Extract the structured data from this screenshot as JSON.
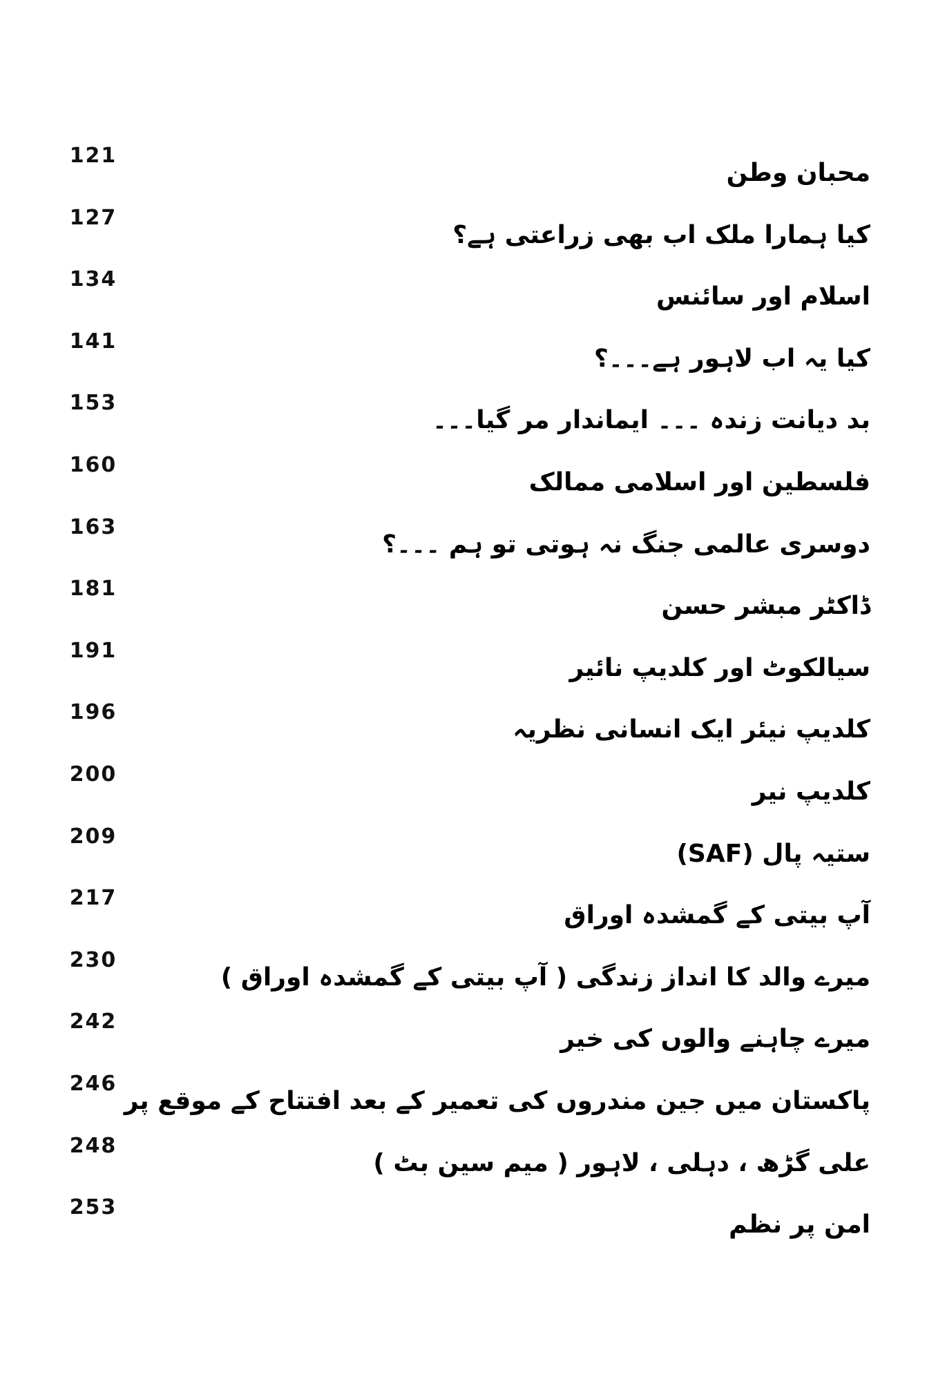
{
  "toc": [
    {
      "title": "محبان وطن",
      "page": "121"
    },
    {
      "title": "کیا ہمارا ملک اب بھی زراعتی ہے؟",
      "page": "127"
    },
    {
      "title": "اسلام اور سائنس",
      "page": "134"
    },
    {
      "title": "کیا یہ اب لاہور ہے۔۔۔؟",
      "page": "141"
    },
    {
      "title": "بد دیانت زندہ ۔۔۔ ایماندار مر گیا۔۔۔",
      "page": "153"
    },
    {
      "title": "فلسطین اور اسلامی ممالک",
      "page": "160"
    },
    {
      "title": "دوسری عالمی جنگ نہ ہوتی تو ہم ۔۔۔؟",
      "page": "163"
    },
    {
      "title": "ڈاکٹر مبشر حسن",
      "page": "181"
    },
    {
      "title": "سیالکوٹ اور کلدیپ نائیر",
      "page": "191"
    },
    {
      "title": "کلدیپ نیئر ایک انسانی نظریہ",
      "page": "196"
    },
    {
      "title": "کلدیپ نیر",
      "page": "200"
    },
    {
      "title": "ستیہ پال (SAF)",
      "page": "209"
    },
    {
      "title": "آپ بیتی کے گمشدہ اوراق",
      "page": "217"
    },
    {
      "title": "میرے والد کا انداز زندگی ( آپ بیتی کے گمشدہ اوراق )",
      "page": "230"
    },
    {
      "title": "میرے چاہنے والوں کی خیر",
      "page": "242"
    },
    {
      "title": "پاکستان میں جین مندروں کی تعمیر کے بعد افتتاح کے موقع پر",
      "page": "246"
    },
    {
      "title": "علی گڑھ ، دہلی ، لاہور ( میم سین بٹ )",
      "page": "248"
    },
    {
      "title": "امن پر نظم",
      "page": "253"
    }
  ]
}
